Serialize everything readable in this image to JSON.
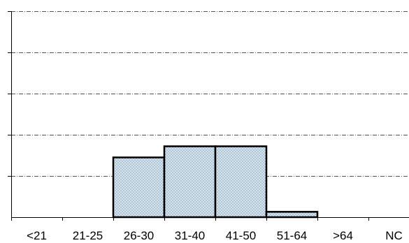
{
  "chart_data": {
    "type": "bar",
    "categories": [
      "<21",
      "21-25",
      "26-30",
      "31-40",
      "41-50",
      "51-64",
      ">64",
      "NC"
    ],
    "values": [
      0,
      0,
      1.45,
      1.72,
      1.72,
      0.13,
      0,
      0
    ],
    "ylim": [
      0,
      5
    ],
    "grid": true,
    "legend": "none",
    "colors": {
      "bar_fill": "#d5e3ed",
      "bar_dots": "#7f9fb8",
      "bar_stroke": "#000000",
      "grid": "#555555",
      "axis": "#000000"
    }
  }
}
